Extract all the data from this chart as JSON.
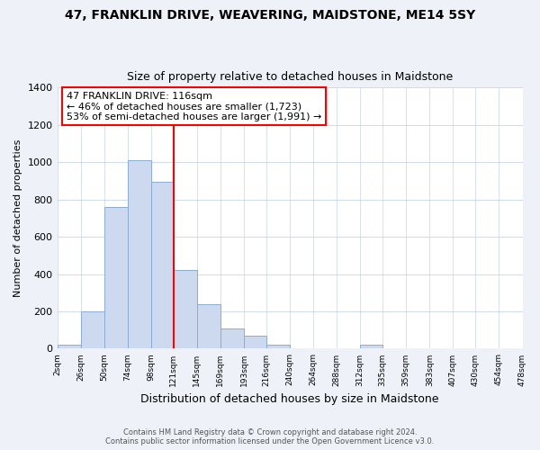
{
  "title": "47, FRANKLIN DRIVE, WEAVERING, MAIDSTONE, ME14 5SY",
  "subtitle": "Size of property relative to detached houses in Maidstone",
  "xlabel": "Distribution of detached houses by size in Maidstone",
  "ylabel": "Number of detached properties",
  "bin_edges": [
    2,
    26,
    50,
    74,
    98,
    121,
    145,
    169,
    193,
    216,
    240,
    264,
    288,
    312,
    335,
    359,
    383,
    407,
    430,
    454,
    478
  ],
  "bar_heights": [
    20,
    200,
    760,
    1010,
    895,
    420,
    240,
    110,
    70,
    20,
    0,
    0,
    0,
    20,
    0,
    0,
    0,
    0,
    0,
    0
  ],
  "bar_color": "#ccd9ee",
  "bar_edgecolor": "#8aadd4",
  "property_line_x": 121,
  "property_line_color": "red",
  "annotation_title": "47 FRANKLIN DRIVE: 116sqm",
  "annotation_line1": "← 46% of detached houses are smaller (1,723)",
  "annotation_line2": "53% of semi-detached houses are larger (1,991) →",
  "annotation_box_color": "white",
  "annotation_box_edgecolor": "red",
  "ylim": [
    0,
    1400
  ],
  "tick_labels": [
    "2sqm",
    "26sqm",
    "50sqm",
    "74sqm",
    "98sqm",
    "121sqm",
    "145sqm",
    "169sqm",
    "193sqm",
    "216sqm",
    "240sqm",
    "264sqm",
    "288sqm",
    "312sqm",
    "335sqm",
    "359sqm",
    "383sqm",
    "407sqm",
    "430sqm",
    "454sqm",
    "478sqm"
  ],
  "footer_line1": "Contains HM Land Registry data © Crown copyright and database right 2024.",
  "footer_line2": "Contains public sector information licensed under the Open Government Licence v3.0.",
  "background_color": "#eef2f8",
  "plot_background": "white",
  "title_fontsize": 10,
  "subtitle_fontsize": 9,
  "annotation_fontsize": 8,
  "footer_fontsize": 6
}
